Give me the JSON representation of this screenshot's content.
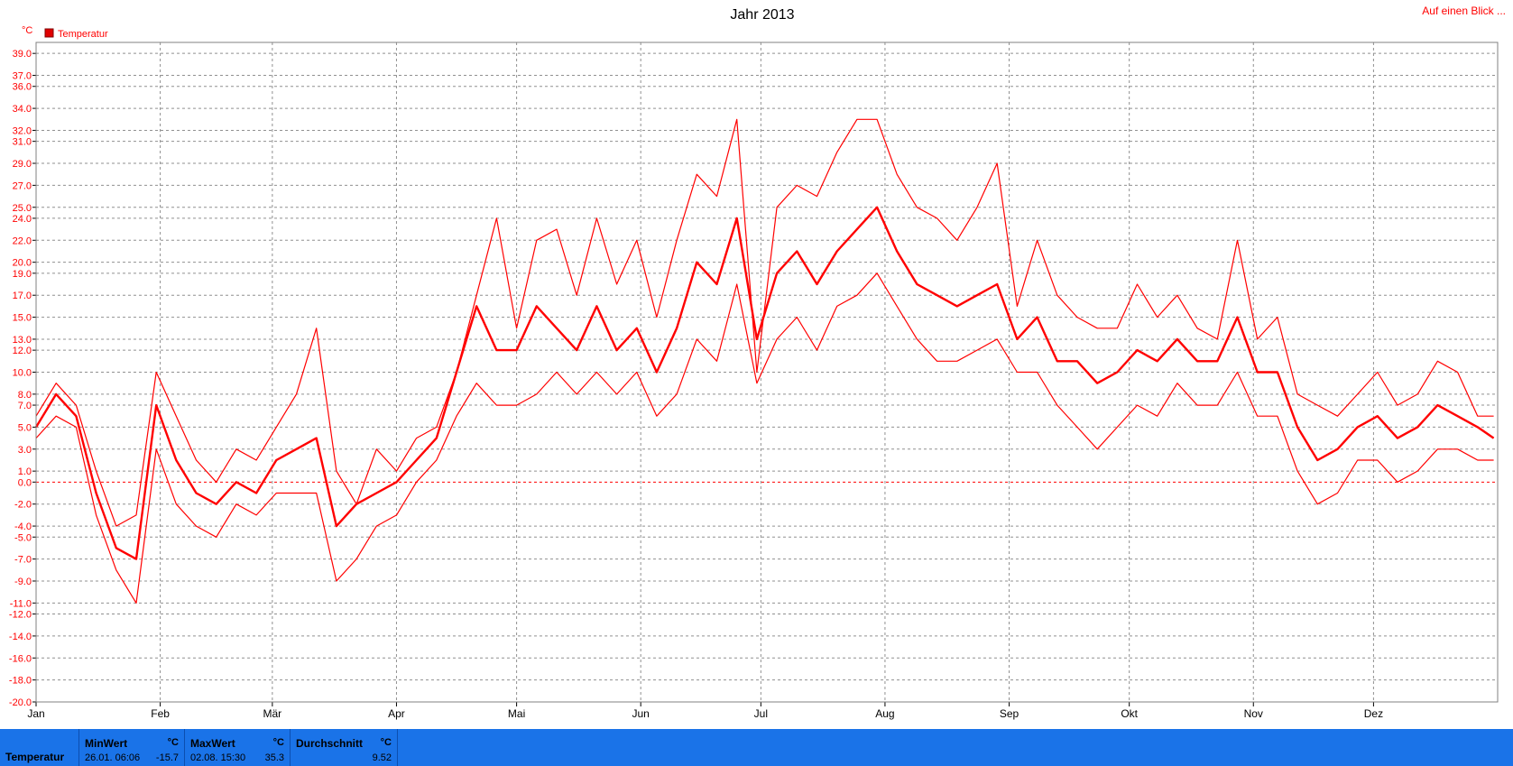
{
  "header": {
    "title": "Jahr 2013",
    "link_label": "Auf einen Blick ..."
  },
  "colors": {
    "series": "#ff0000",
    "panel": "#1a73e8",
    "grid": "#808080"
  },
  "chart_data": {
    "type": "line",
    "title": "Jahr 2013",
    "yunit": "°C",
    "ylim": [
      -20,
      40
    ],
    "y_ticks": [
      39,
      37,
      36,
      34,
      32,
      31,
      29,
      27,
      25,
      24,
      22,
      20,
      19,
      17,
      15,
      13,
      12,
      10,
      8,
      7,
      5,
      3,
      1,
      0,
      -2,
      -4,
      -5,
      -7,
      -9,
      -11,
      -12,
      -14,
      -16,
      -18,
      -20
    ],
    "y_tick_labels": [
      "39.0",
      "37.0",
      "36.0",
      "34.0",
      "32.0",
      "31.0",
      "29.0",
      "27.0",
      "25.0",
      "24.0",
      "22.0",
      "20.0",
      "19.0",
      "17.0",
      "15.0",
      "13.0",
      "12.0",
      "10.0",
      "8.0",
      "7.0",
      "5.0",
      "3.0",
      "1.0",
      "0.0",
      "-2.0",
      "-4.0",
      "-5.0",
      "-7.0",
      "-9.0",
      "-11.0",
      "-12.0",
      "-14.0",
      "-16.0",
      "-18.0",
      "-20.0"
    ],
    "x_ticks": [
      {
        "label": "Jan",
        "day": 1
      },
      {
        "label": "Feb",
        "day": 32
      },
      {
        "label": "Mär",
        "day": 60
      },
      {
        "label": "Apr",
        "day": 91
      },
      {
        "label": "Mai",
        "day": 121
      },
      {
        "label": "Jun",
        "day": 152
      },
      {
        "label": "Jul",
        "day": 182
      },
      {
        "label": "Aug",
        "day": 213
      },
      {
        "label": "Sep",
        "day": 244
      },
      {
        "label": "Okt",
        "day": 274
      },
      {
        "label": "Nov",
        "day": 305
      },
      {
        "label": "Dez",
        "day": 335
      }
    ],
    "legend": [
      "Temperatur"
    ],
    "x": [
      1,
      6,
      11,
      16,
      21,
      26,
      31,
      36,
      41,
      46,
      51,
      56,
      61,
      66,
      71,
      76,
      81,
      86,
      91,
      96,
      101,
      106,
      111,
      116,
      121,
      126,
      131,
      136,
      141,
      146,
      151,
      156,
      161,
      166,
      171,
      176,
      181,
      186,
      191,
      196,
      201,
      206,
      211,
      216,
      221,
      226,
      231,
      236,
      241,
      246,
      251,
      256,
      261,
      266,
      271,
      276,
      281,
      286,
      291,
      296,
      301,
      306,
      311,
      316,
      321,
      326,
      331,
      336,
      341,
      346,
      351,
      356,
      361,
      365
    ],
    "series": [
      {
        "name": "Temperatur max",
        "values": [
          6,
          9,
          7,
          1,
          -4,
          -3,
          10,
          6,
          2,
          0,
          3,
          2,
          5,
          8,
          14,
          1,
          -2,
          3,
          1,
          4,
          5,
          10,
          17,
          24,
          14,
          22,
          23,
          17,
          24,
          18,
          22,
          15,
          22,
          28,
          26,
          33,
          10,
          25,
          27,
          26,
          30,
          33,
          33,
          28,
          25,
          24,
          22,
          25,
          29,
          16,
          22,
          17,
          15,
          14,
          14,
          18,
          15,
          17,
          14,
          13,
          22,
          13,
          15,
          8,
          7,
          6,
          8,
          10,
          7,
          8,
          11,
          10,
          6,
          6
        ]
      },
      {
        "name": "Temperatur",
        "values": [
          5,
          8,
          6,
          -1,
          -6,
          -7,
          7,
          2,
          -1,
          -2,
          0,
          -1,
          2,
          3,
          4,
          -4,
          -2,
          -1,
          0,
          2,
          4,
          10,
          16,
          12,
          12,
          16,
          14,
          12,
          16,
          12,
          14,
          10,
          14,
          20,
          18,
          24,
          13,
          19,
          21,
          18,
          21,
          23,
          25,
          21,
          18,
          17,
          16,
          17,
          18,
          13,
          15,
          11,
          11,
          9,
          10,
          12,
          11,
          13,
          11,
          11,
          15,
          10,
          10,
          5,
          2,
          3,
          5,
          6,
          4,
          5,
          7,
          6,
          5,
          4
        ]
      },
      {
        "name": "Temperatur min",
        "values": [
          4,
          6,
          5,
          -3,
          -8,
          -11,
          3,
          -2,
          -4,
          -5,
          -2,
          -3,
          -1,
          -1,
          -1,
          -9,
          -7,
          -4,
          -3,
          0,
          2,
          6,
          9,
          7,
          7,
          8,
          10,
          8,
          10,
          8,
          10,
          6,
          8,
          13,
          11,
          18,
          9,
          13,
          15,
          12,
          16,
          17,
          19,
          16,
          13,
          11,
          11,
          12,
          13,
          10,
          10,
          7,
          5,
          3,
          5,
          7,
          6,
          9,
          7,
          7,
          10,
          6,
          6,
          1,
          -2,
          -1,
          2,
          2,
          0,
          1,
          3,
          3,
          2,
          2
        ]
      }
    ]
  },
  "footer": {
    "label": "Temperatur",
    "min": {
      "header": "MinWert",
      "unit": "°C",
      "timestamp": "26.01.  06:06",
      "value": "-15.7"
    },
    "max": {
      "header": "MaxWert",
      "unit": "°C",
      "timestamp": "02.08.  15:30",
      "value": "35.3"
    },
    "avg": {
      "header": "Durchschnitt",
      "unit": "°C",
      "value": "9.52"
    }
  }
}
